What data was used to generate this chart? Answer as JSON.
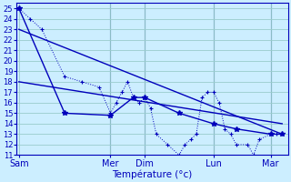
{
  "background_color": "#cceeff",
  "grid_color": "#99cccc",
  "line_color": "#0000bb",
  "xlabel": "Température (°c)",
  "day_labels": [
    "Sam",
    "Mer",
    "Dim",
    "Lun",
    "Mar"
  ],
  "day_positions": [
    0,
    8,
    11,
    17,
    22
  ],
  "ylim": [
    11,
    25.5
  ],
  "yticks": [
    11,
    12,
    13,
    14,
    15,
    16,
    17,
    18,
    19,
    20,
    21,
    22,
    23,
    24,
    25
  ],
  "xlim": [
    -0.2,
    23.5
  ],
  "series_dotted_x": [
    0,
    1,
    2,
    4,
    5.5,
    7,
    8,
    8.5,
    9,
    9.5,
    10,
    10.5,
    11,
    11.5,
    12,
    13,
    14,
    14.5,
    15,
    15.5,
    16,
    16.5,
    17,
    17.5,
    18,
    18.5,
    19,
    20,
    20.5,
    21,
    22,
    22.5,
    23
  ],
  "series_dotted_y": [
    25,
    24,
    23,
    18.5,
    18,
    17.5,
    15,
    16,
    17,
    18,
    16.5,
    16,
    16.5,
    15.5,
    13,
    12,
    11,
    12,
    12.5,
    13,
    16.5,
    17,
    17,
    16,
    13.5,
    13,
    12,
    12,
    11,
    12.5,
    13,
    13,
    13
  ],
  "series_solid_x": [
    0,
    4,
    8,
    10,
    11,
    14,
    17,
    19,
    22,
    23
  ],
  "series_solid_y": [
    25,
    15,
    14.8,
    16.5,
    16.5,
    15,
    14,
    13.5,
    13,
    13
  ],
  "trend1_x": [
    0,
    23
  ],
  "trend1_y": [
    23,
    13
  ],
  "trend2_x": [
    0,
    23
  ],
  "trend2_y": [
    18,
    14
  ],
  "vline_positions": [
    8,
    11,
    17,
    22
  ]
}
